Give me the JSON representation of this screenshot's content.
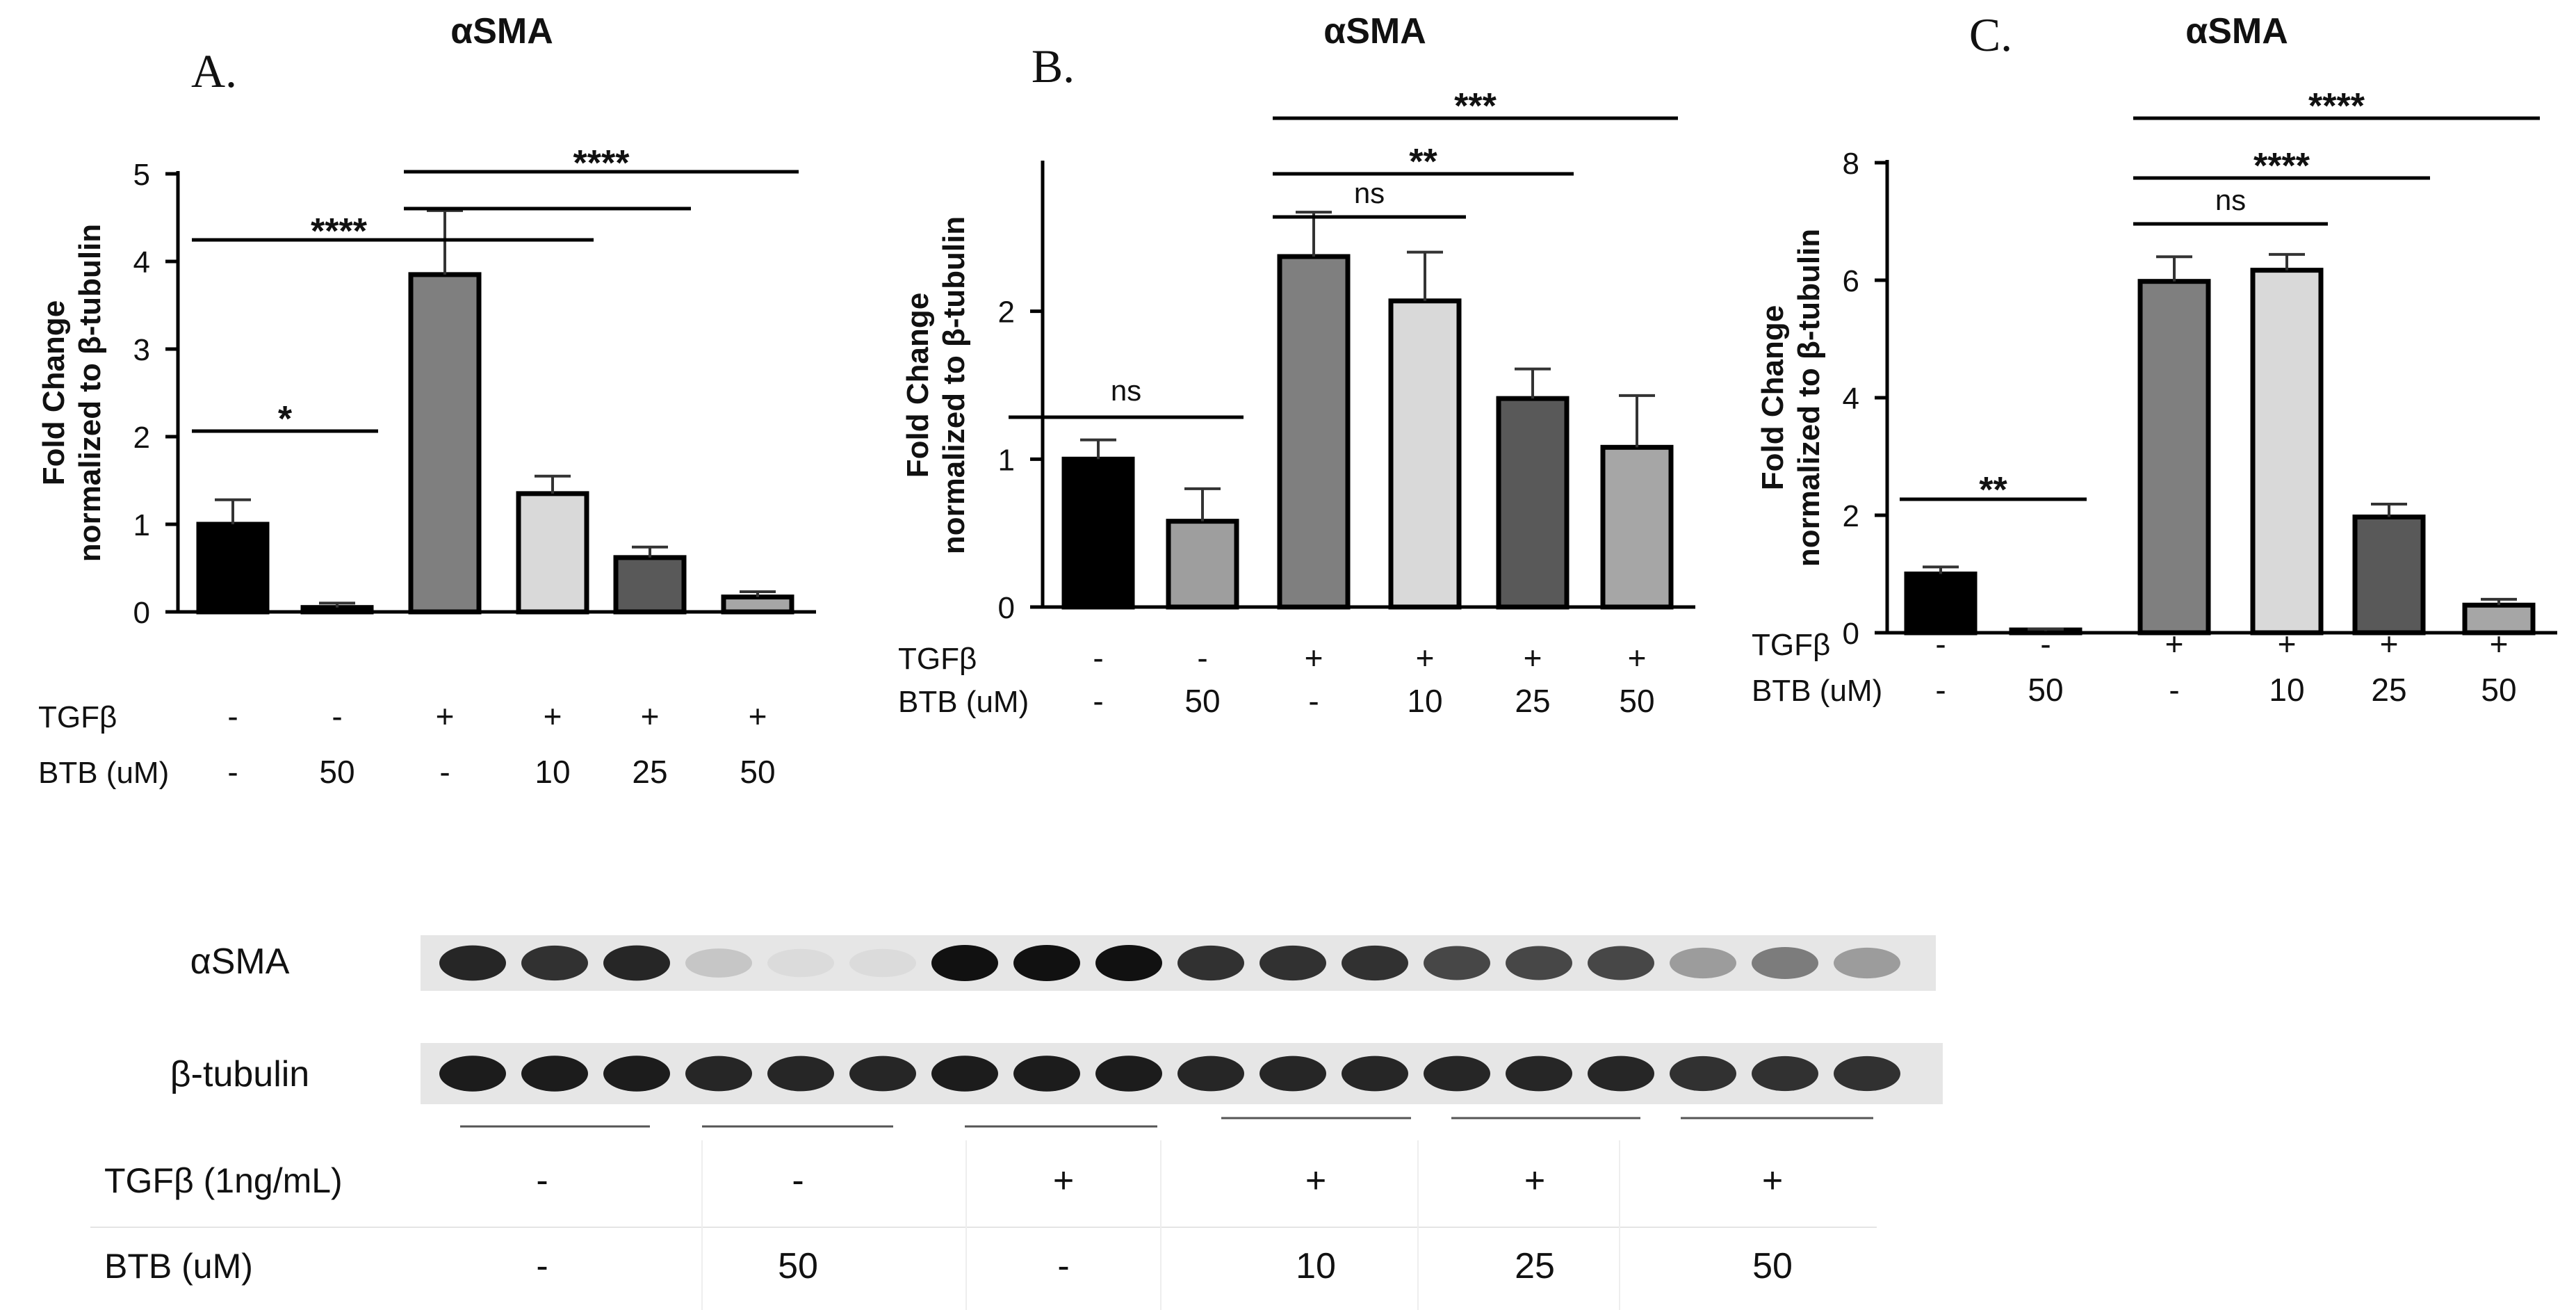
{
  "chart_data": [
    {
      "panel": "A.",
      "type": "bar",
      "title": "αSMA",
      "ylabel_lines": [
        "Fold Change",
        "normalized to β-tubulin"
      ],
      "ylim": [
        0,
        5
      ],
      "yticks": [
        "0",
        "1",
        "2",
        "3",
        "4",
        "5"
      ],
      "values": [
        1.0,
        0.05,
        3.85,
        1.35,
        0.62,
        0.17
      ],
      "errors": [
        0.28,
        0.05,
        0.73,
        0.2,
        0.12,
        0.06
      ],
      "fill_colors": [
        "#000000",
        "#9e9e9e",
        "#7f7f7f",
        "#d9d9d9",
        "#595959",
        "#a6a6a6"
      ],
      "row1_label": "TGFβ",
      "row1": [
        "-",
        "-",
        "+",
        "+",
        "+",
        "+"
      ],
      "row2_label": "BTB (uM)",
      "row2": [
        "-",
        "50",
        "-",
        "10",
        "25",
        "50"
      ],
      "sig": [
        {
          "from": 0,
          "to": 1,
          "label": "*"
        },
        {
          "from": 0,
          "to": 2,
          "label": "****"
        },
        {
          "from": 2,
          "to": 5,
          "label": "****"
        },
        {
          "from": 2,
          "to": 4,
          "label": ""
        },
        {
          "from": 2,
          "to": 3,
          "label": ""
        }
      ]
    },
    {
      "panel": "B.",
      "type": "bar",
      "title": "αSMA",
      "ylabel_lines": [
        "Fold Change",
        "normalized to β-tubulin"
      ],
      "ylim": [
        0,
        3
      ],
      "yticks": [
        "0",
        "1",
        "2"
      ],
      "values": [
        1.0,
        0.58,
        2.37,
        2.07,
        1.41,
        1.08
      ],
      "errors": [
        0.13,
        0.22,
        0.3,
        0.33,
        0.2,
        0.35
      ],
      "fill_colors": [
        "#000000",
        "#9e9e9e",
        "#7f7f7f",
        "#d9d9d9",
        "#595959",
        "#a6a6a6"
      ],
      "row1_label": "TGFβ",
      "row1": [
        "-",
        "-",
        "+",
        "+",
        "+",
        "+"
      ],
      "row2_label": "BTB (uM)",
      "row2": [
        "-",
        "50",
        "-",
        "10",
        "25",
        "50"
      ],
      "sig": [
        {
          "from": 0,
          "to": 1,
          "label": "ns"
        },
        {
          "from": 2,
          "to": 3,
          "label": "ns"
        },
        {
          "from": 2,
          "to": 4,
          "label": "**"
        },
        {
          "from": 2,
          "to": 5,
          "label": "***"
        }
      ]
    },
    {
      "panel": "C.",
      "type": "bar",
      "title": "αSMA",
      "ylabel_lines": [
        "Fold Change",
        "normalized to β-tubulin"
      ],
      "ylim": [
        0,
        8
      ],
      "yticks": [
        "0",
        "2",
        "4",
        "6",
        "8"
      ],
      "values": [
        1.0,
        0.03,
        5.98,
        6.17,
        1.97,
        0.47
      ],
      "errors": [
        0.12,
        0.03,
        0.42,
        0.27,
        0.22,
        0.1
      ],
      "fill_colors": [
        "#000000",
        "#9e9e9e",
        "#7f7f7f",
        "#d9d9d9",
        "#595959",
        "#a6a6a6"
      ],
      "row1_label": "TGFβ",
      "row1": [
        "-",
        "-",
        "+",
        "+",
        "+",
        "+"
      ],
      "row2_label": "BTB (uM)",
      "row2": [
        "-",
        "50",
        "-",
        "10",
        "25",
        "50"
      ],
      "sig": [
        {
          "from": 0,
          "to": 1,
          "label": "**"
        },
        {
          "from": 2,
          "to": 3,
          "label": "ns"
        },
        {
          "from": 2,
          "to": 4,
          "label": "****"
        },
        {
          "from": 2,
          "to": 5,
          "label": "****"
        }
      ]
    }
  ],
  "blot": {
    "rows": [
      {
        "label": "αSMA",
        "intensities": [
          0.9,
          0.85,
          0.9,
          0.15,
          0.05,
          0.05,
          1.0,
          1.0,
          1.0,
          0.85,
          0.85,
          0.85,
          0.75,
          0.75,
          0.75,
          0.35,
          0.5,
          0.35
        ]
      },
      {
        "label": "β-tubulin",
        "intensities": [
          0.95,
          0.95,
          0.95,
          0.9,
          0.9,
          0.9,
          0.95,
          0.95,
          0.95,
          0.9,
          0.9,
          0.9,
          0.9,
          0.9,
          0.9,
          0.85,
          0.85,
          0.85
        ]
      }
    ],
    "table": {
      "row1_label": "TGFβ (1ng/mL)",
      "row1": [
        "-",
        "-",
        "+",
        "+",
        "+",
        "+"
      ],
      "row2_label": "BTB (uM)",
      "row2": [
        "-",
        "50",
        "-",
        "10",
        "25",
        "50"
      ]
    }
  }
}
